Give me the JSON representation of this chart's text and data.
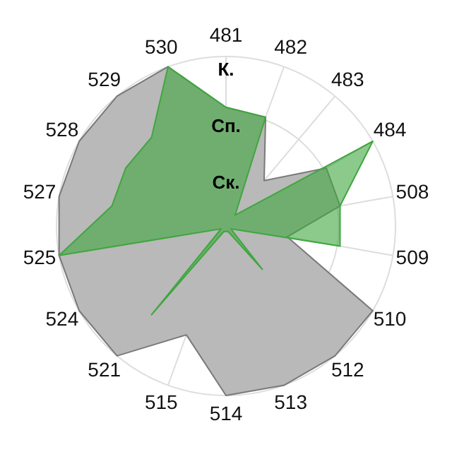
{
  "chart_data": {
    "type": "radar",
    "categories": [
      "481",
      "482",
      "483",
      "484",
      "508",
      "509",
      "510",
      "512",
      "513",
      "514",
      "515",
      "521",
      "524",
      "525",
      "527",
      "528",
      "529",
      "530"
    ],
    "series": [
      {
        "color": "#b9b9b9",
        "values": [
          2.1,
          2.05,
          1.05,
          2.05,
          2.05,
          1.1,
          3,
          3,
          3,
          3,
          2.05,
          3,
          3,
          3,
          3,
          3,
          3,
          3
        ]
      },
      {
        "color": "#3fa63f",
        "values": [
          2.1,
          2.05,
          0.25,
          3,
          2.05,
          2.05,
          0.1,
          1,
          0.1,
          0.1,
          0.1,
          2.05,
          0.1,
          3,
          2.05,
          2.05,
          2.05,
          3
        ]
      }
    ],
    "ylim": [
      0,
      3
    ],
    "yticks": [
      {
        "value": 1,
        "label": "Ск."
      },
      {
        "value": 2,
        "label": "Сп."
      },
      {
        "value": 3,
        "label": "К."
      }
    ],
    "grid": true,
    "legend": false
  }
}
